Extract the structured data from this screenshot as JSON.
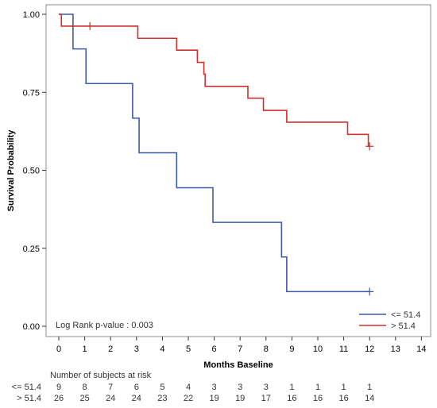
{
  "chart_data": {
    "type": "line",
    "subtype": "kaplan-meier",
    "xlabel": "Months Baseline",
    "ylabel": "Survival Probability",
    "xlim": [
      0,
      14
    ],
    "ylim": [
      0,
      1
    ],
    "x_ticks": [
      0,
      1,
      2,
      3,
      4,
      5,
      6,
      7,
      8,
      9,
      10,
      11,
      12,
      13,
      14
    ],
    "y_ticks": [
      "0.00",
      "0.25",
      "0.50",
      "0.75",
      "1.00"
    ],
    "grid": false,
    "legend_position": "bottom-right",
    "annotation": "Log Rank p-value :  0.003",
    "series": [
      {
        "name": "<= 51.4",
        "color": "#3b5aa8",
        "steps": [
          [
            0,
            1.0
          ],
          [
            0.55,
            0.889
          ],
          [
            1.05,
            0.778
          ],
          [
            2.85,
            0.667
          ],
          [
            3.1,
            0.556
          ],
          [
            4.55,
            0.444
          ],
          [
            5.95,
            0.333
          ],
          [
            8.6,
            0.222
          ],
          [
            8.8,
            0.111
          ],
          [
            12.0,
            0.111
          ]
        ],
        "censored": [
          [
            12.0,
            0.111
          ]
        ]
      },
      {
        "name": "> 51.4",
        "color": "#d0312d",
        "steps": [
          [
            0,
            1.0
          ],
          [
            0.1,
            0.962
          ],
          [
            3.05,
            0.923
          ],
          [
            4.55,
            0.885
          ],
          [
            5.35,
            0.846
          ],
          [
            5.6,
            0.808
          ],
          [
            5.65,
            0.769
          ],
          [
            7.3,
            0.731
          ],
          [
            7.9,
            0.692
          ],
          [
            8.8,
            0.654
          ],
          [
            11.15,
            0.615
          ],
          [
            11.95,
            0.577
          ],
          [
            12.0,
            0.577
          ]
        ],
        "censored": [
          [
            1.2,
            0.962
          ],
          [
            12.0,
            0.577
          ]
        ]
      }
    ],
    "risk_table": {
      "title": "Number of subjects at risk",
      "rows": [
        {
          "label": "<= 51.4",
          "values": [
            "9",
            "8",
            "7",
            "6",
            "5",
            "4",
            "3",
            "3",
            "3",
            "1",
            "1",
            "1",
            "1"
          ]
        },
        {
          "label": "> 51.4",
          "values": [
            "26",
            "25",
            "24",
            "24",
            "23",
            "22",
            "19",
            "19",
            "17",
            "16",
            "16",
            "16",
            "14"
          ]
        }
      ]
    }
  }
}
